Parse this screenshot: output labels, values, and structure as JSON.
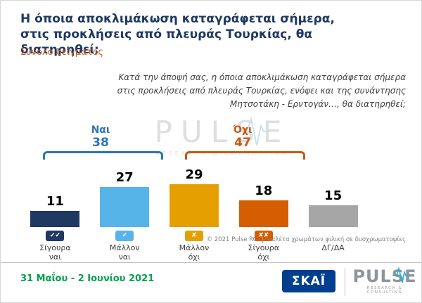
{
  "colors": {
    "title": "#1f3864",
    "subtitle": "#c0622a",
    "text": "#3f3f3f",
    "gray_text": "#7f7f7f",
    "date_green": "#00a24e",
    "skai_blue": "#003f8f",
    "pulse_gray": "#8e959c"
  },
  "header": {
    "title": "Η όποια αποκλιμάκωση καταγράφεται σήμερα, στις προκλήσεις από πλευράς Τουρκίας, θα διατηρηθεί;",
    "subtitle": "Σύνολο δείγματος"
  },
  "question": {
    "lines": [
      "Κατά την άποψή σας, η όποια αποκλιμάκωση καταγράφεται σήμερα",
      "στις προκλήσεις από πλευράς Τουρκίας, ενόψει και της συνάντησης",
      "Μητσοτάκη - Ερντογάν…, θα διατηρηθεί;"
    ]
  },
  "chart_data": {
    "type": "bar",
    "title": "Η όποια αποκλιμάκωση καταγράφεται σήμερα, στις προκλήσεις από πλευράς Τουρκίας, θα διατηρηθεί;",
    "subtitle": "Σύνολο δείγματος",
    "categories": [
      "Σίγουρα ναι",
      "Μάλλον ναι",
      "Μάλλον όχι",
      "Σίγουρα όχι",
      "ΔΓ/ΔΑ"
    ],
    "values": [
      11,
      27,
      29,
      18,
      15
    ],
    "colors": [
      "#1f3864",
      "#56b4e9",
      "#e69f00",
      "#d55e00",
      "#a6a6a6"
    ],
    "icons": [
      "✔✔",
      "✔",
      "✘",
      "✘✘",
      ""
    ],
    "groups": [
      {
        "label": "Ναι",
        "value": 38,
        "color": "#2e75b6",
        "bars": [
          "Σίγουρα ναι",
          "Μάλλον ναι"
        ]
      },
      {
        "label": "Όχι",
        "value": 47,
        "color": "#c55a11",
        "bars": [
          "Μάλλον όχι",
          "Σίγουρα όχι"
        ]
      }
    ],
    "ylim": [
      0,
      30
    ],
    "grid": false,
    "value_labels": true,
    "legend": "none"
  },
  "watermark": {
    "text": "PULSE",
    "subtext": "RESEARCH & CONSULTING"
  },
  "footer": {
    "copyright": "© 2021 Pulse RC",
    "palette_note": "παλέτα χρωμάτων φιλική σε δυσχρωματοψίες",
    "date_range": "31 Μαΐου - 2 Ιουνίου 2021",
    "skai_logo_text": "ΣΚΑΪ",
    "pulse_logo_text": "PULSE",
    "pulse_logo_subtext": "RESEARCH & CONSULTING"
  }
}
